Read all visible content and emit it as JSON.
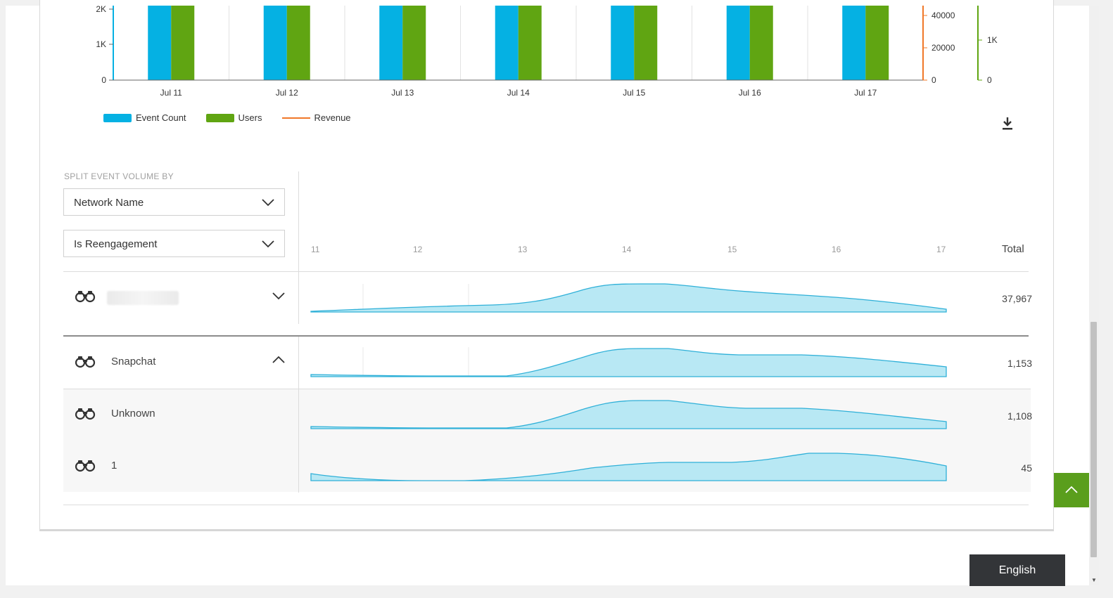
{
  "chart_data": {
    "type": "bar",
    "categories": [
      "Jul 11",
      "Jul 12",
      "Jul 13",
      "Jul 14",
      "Jul 15",
      "Jul 16",
      "Jul 17"
    ],
    "series": [
      {
        "name": "Event Count",
        "color": "#05b1e3",
        "type": "bar"
      },
      {
        "name": "Users",
        "color": "#60a512",
        "type": "bar"
      },
      {
        "name": "Revenue",
        "color": "#f07828",
        "type": "line"
      }
    ],
    "y_left_ticks": [
      "0",
      "1K",
      "2K"
    ],
    "y_right1_ticks": [
      "0",
      "20000",
      "40000"
    ],
    "y_right2_ticks": [
      "0",
      "1K"
    ],
    "legend_position": "bottom-left"
  },
  "legend": {
    "event_count": "Event Count",
    "users": "Users",
    "revenue": "Revenue"
  },
  "split": {
    "label": "SPLIT EVENT VOLUME BY",
    "dropdown1": "Network Name",
    "dropdown2": "Is Reengagement"
  },
  "sparkline_axis": [
    "11",
    "12",
    "13",
    "14",
    "15",
    "16",
    "17"
  ],
  "total_header": "Total",
  "rows": [
    {
      "label": "",
      "total": "37,967",
      "expanded": false
    },
    {
      "label": "Snapchat",
      "total": "1,153",
      "expanded": true
    },
    {
      "label": "Unknown",
      "total": "1,108"
    },
    {
      "label": "1",
      "total": "45"
    }
  ],
  "language_button": "English",
  "colors": {
    "sparkline_fill": "#b8e8f4",
    "sparkline_stroke": "#2fb0d8",
    "accent_green": "#5a9e1c"
  }
}
